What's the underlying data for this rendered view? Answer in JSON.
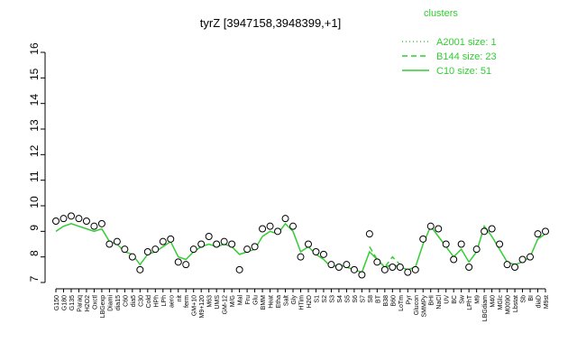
{
  "chart_data": {
    "type": "line",
    "title": "tyrZ [3947158,3948399,+1]",
    "legend_title": "clusters",
    "categories": [
      "G150",
      "G180",
      "G135",
      "Paraq",
      "H2O2",
      "Oxctl",
      "LBGexp",
      "Diami",
      "dia15",
      "C60",
      "dia5",
      "C30",
      "Cold",
      "HPh",
      "LPh",
      "aero",
      "nit",
      "ferm",
      "GM+10",
      "M9+120",
      "M63",
      "UMS",
      "GM-12",
      "M/G",
      "Mal",
      "Fru",
      "Glu",
      "BMM",
      "Heat",
      "Etha",
      "Salt",
      "Gly",
      "HTim",
      "H2O",
      "S1",
      "S2",
      "S3",
      "S4",
      "S5",
      "S6",
      "S7",
      "S8",
      "BT",
      "B38",
      "B60",
      "LoTm",
      "Pyr",
      "Glucon",
      "SMMPy",
      "BHI",
      "NaCl",
      "UV",
      "BC",
      "Sw",
      "LPhT",
      "M9",
      "LBGdiam",
      "M40",
      "MGlc",
      "M0090",
      "Lbstat",
      "Sb",
      "BI",
      "diaD",
      "M9st"
    ],
    "points": [
      9.4,
      9.5,
      9.6,
      9.5,
      9.4,
      9.2,
      9.3,
      8.5,
      8.6,
      8.3,
      8.0,
      7.5,
      8.2,
      8.3,
      8.6,
      8.7,
      7.8,
      7.7,
      8.3,
      8.5,
      8.8,
      8.5,
      8.6,
      8.5,
      7.5,
      8.3,
      8.4,
      9.1,
      9.2,
      9.0,
      9.5,
      9.2,
      8.0,
      8.5,
      8.2,
      8.1,
      7.7,
      7.6,
      7.7,
      7.5,
      7.3,
      8.9,
      7.8,
      7.5,
      7.6,
      7.6,
      7.4,
      7.5,
      8.7,
      9.2,
      9.1,
      8.5,
      7.9,
      8.5,
      7.6,
      8.3,
      9.0,
      9.1,
      8.5,
      7.7,
      7.6,
      7.9,
      8.0,
      8.9,
      9.0
    ],
    "series": [
      {
        "name": "A2001 size: 1",
        "color": "#33cc33",
        "dash": "dotted",
        "values": [
          null,
          null,
          null,
          null,
          null,
          null,
          null,
          null,
          null,
          null,
          null,
          null,
          null,
          null,
          null,
          null,
          null,
          null,
          null,
          null,
          null,
          null,
          null,
          null,
          null,
          null,
          null,
          null,
          null,
          null,
          null,
          null,
          null,
          null,
          null,
          null,
          null,
          null,
          null,
          null,
          null,
          null,
          null,
          null,
          null,
          null,
          null,
          null,
          null,
          null,
          null,
          null,
          null,
          null,
          null,
          null,
          null,
          null,
          null,
          null,
          null,
          null,
          null,
          null,
          null
        ]
      },
      {
        "name": "B144 size: 23",
        "color": "#33cc33",
        "dash": "dashed",
        "values": [
          null,
          null,
          null,
          null,
          null,
          null,
          null,
          null,
          null,
          null,
          null,
          null,
          null,
          null,
          null,
          null,
          null,
          null,
          null,
          null,
          null,
          null,
          null,
          null,
          null,
          null,
          null,
          null,
          null,
          null,
          null,
          null,
          null,
          null,
          null,
          null,
          null,
          null,
          null,
          null,
          null,
          8.4,
          7.9,
          7.6,
          8.0,
          7.7,
          null,
          null,
          null,
          null,
          null,
          null,
          null,
          null,
          null,
          null,
          null,
          null,
          null,
          null,
          null,
          null,
          null,
          null,
          null
        ]
      },
      {
        "name": "C10 size: 51",
        "color": "#33cc33",
        "dash": "solid",
        "values": [
          9.0,
          9.2,
          9.3,
          9.2,
          9.1,
          9.0,
          9.1,
          8.6,
          8.5,
          8.2,
          8.1,
          7.7,
          8.1,
          8.2,
          8.4,
          8.6,
          8.0,
          7.9,
          8.2,
          8.4,
          8.5,
          8.4,
          8.5,
          8.4,
          8.1,
          8.2,
          8.3,
          8.8,
          9.0,
          8.9,
          9.3,
          9.0,
          8.2,
          8.4,
          8.1,
          7.9,
          7.6,
          7.7,
          7.6,
          7.5,
          7.4,
          8.2,
          7.9,
          7.6,
          7.7,
          7.6,
          7.5,
          7.6,
          8.5,
          9.2,
          8.8,
          8.4,
          8.0,
          8.3,
          7.8,
          8.2,
          9.2,
          8.8,
          8.3,
          7.8,
          7.7,
          7.8,
          8.0,
          8.7,
          8.9
        ]
      }
    ],
    "ylim": [
      7,
      16
    ],
    "yticks": [
      7,
      8,
      9,
      10,
      11,
      12,
      13,
      14,
      15,
      16
    ]
  }
}
